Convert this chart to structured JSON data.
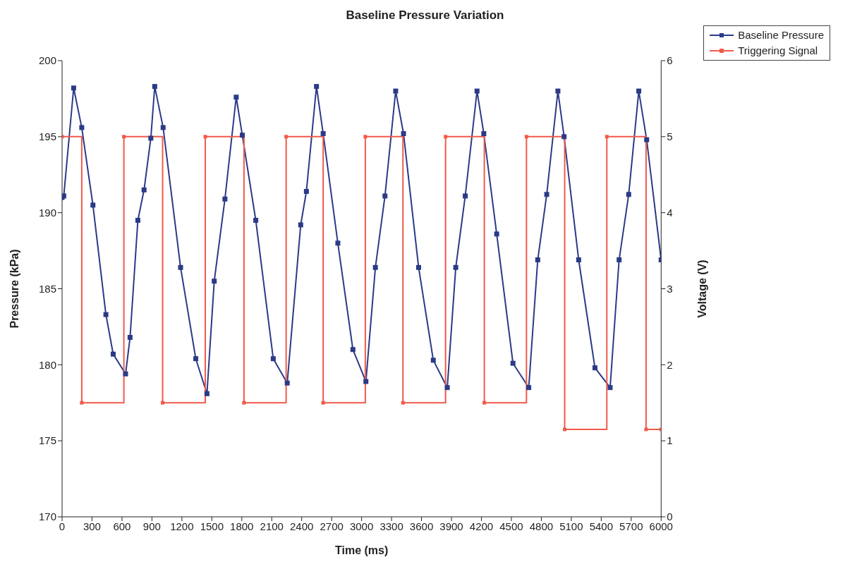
{
  "chart_data": {
    "type": "line",
    "title": "Baseline Pressure Variation",
    "xlabel": "Time (ms)",
    "ylabel": "Pressure (kPa)",
    "y2label": "Voltage (V)",
    "xlim": [
      0,
      6000
    ],
    "xticks": [
      0,
      300,
      600,
      900,
      1200,
      1500,
      1800,
      2100,
      2400,
      2700,
      3000,
      3300,
      3600,
      3900,
      4200,
      4500,
      4800,
      5100,
      5400,
      5700,
      6000
    ],
    "ylim": [
      170,
      200
    ],
    "yticks": [
      170,
      175,
      180,
      185,
      190,
      195,
      200
    ],
    "y2lim": [
      0,
      6
    ],
    "y2ticks": [
      0,
      1,
      2,
      3,
      4,
      5,
      6
    ],
    "grid": false,
    "legend": "top right",
    "marker": "square",
    "series": [
      {
        "name": "Baseline Pressure",
        "color": "#2b3a86",
        "x": [
          0,
          17,
          116,
          197,
          309,
          439,
          512,
          636,
          681,
          759,
          821,
          889,
          928,
          1012,
          1187,
          1339,
          1451,
          1524,
          1631,
          1744,
          1805,
          1940,
          2115,
          2255,
          2390,
          2447,
          2548,
          2615,
          2762,
          2913,
          3043,
          3138,
          3234,
          3341,
          3420,
          3571,
          3718,
          3858,
          3943,
          4038,
          4156,
          4224,
          4353,
          4516,
          4674,
          4764,
          4854,
          4966,
          5028,
          5174,
          5337,
          5489,
          5579,
          5675,
          5776,
          5855,
          6000
        ],
        "values": [
          191.0,
          191.1,
          198.2,
          195.6,
          190.5,
          183.3,
          180.7,
          179.4,
          181.8,
          189.5,
          191.5,
          194.9,
          198.3,
          195.6,
          186.4,
          180.4,
          178.1,
          185.5,
          190.9,
          197.6,
          195.1,
          189.5,
          180.4,
          178.8,
          189.2,
          191.4,
          198.3,
          195.2,
          188.0,
          181.0,
          178.9,
          186.4,
          191.1,
          198.0,
          195.2,
          186.4,
          180.3,
          178.5,
          186.4,
          191.1,
          198.0,
          195.2,
          188.6,
          180.1,
          178.5,
          186.9,
          191.2,
          198.0,
          195.0,
          186.9,
          179.8,
          178.5,
          186.9,
          191.2,
          198.0,
          194.8,
          186.9
        ]
      },
      {
        "name": "Triggering Signal",
        "color": "#f05a4a",
        "type": "step",
        "axis": "y2",
        "x": [
          0,
          197,
          619,
          1007,
          1434,
          1822,
          2244,
          2615,
          3037,
          3414,
          3841,
          4229,
          4651,
          5034,
          5456,
          5849,
          6000
        ],
        "values": [
          5,
          1.5,
          5,
          1.5,
          5,
          1.5,
          5,
          1.5,
          5,
          1.5,
          5,
          1.5,
          5,
          1.15,
          5,
          1.15,
          1.15
        ]
      }
    ]
  }
}
